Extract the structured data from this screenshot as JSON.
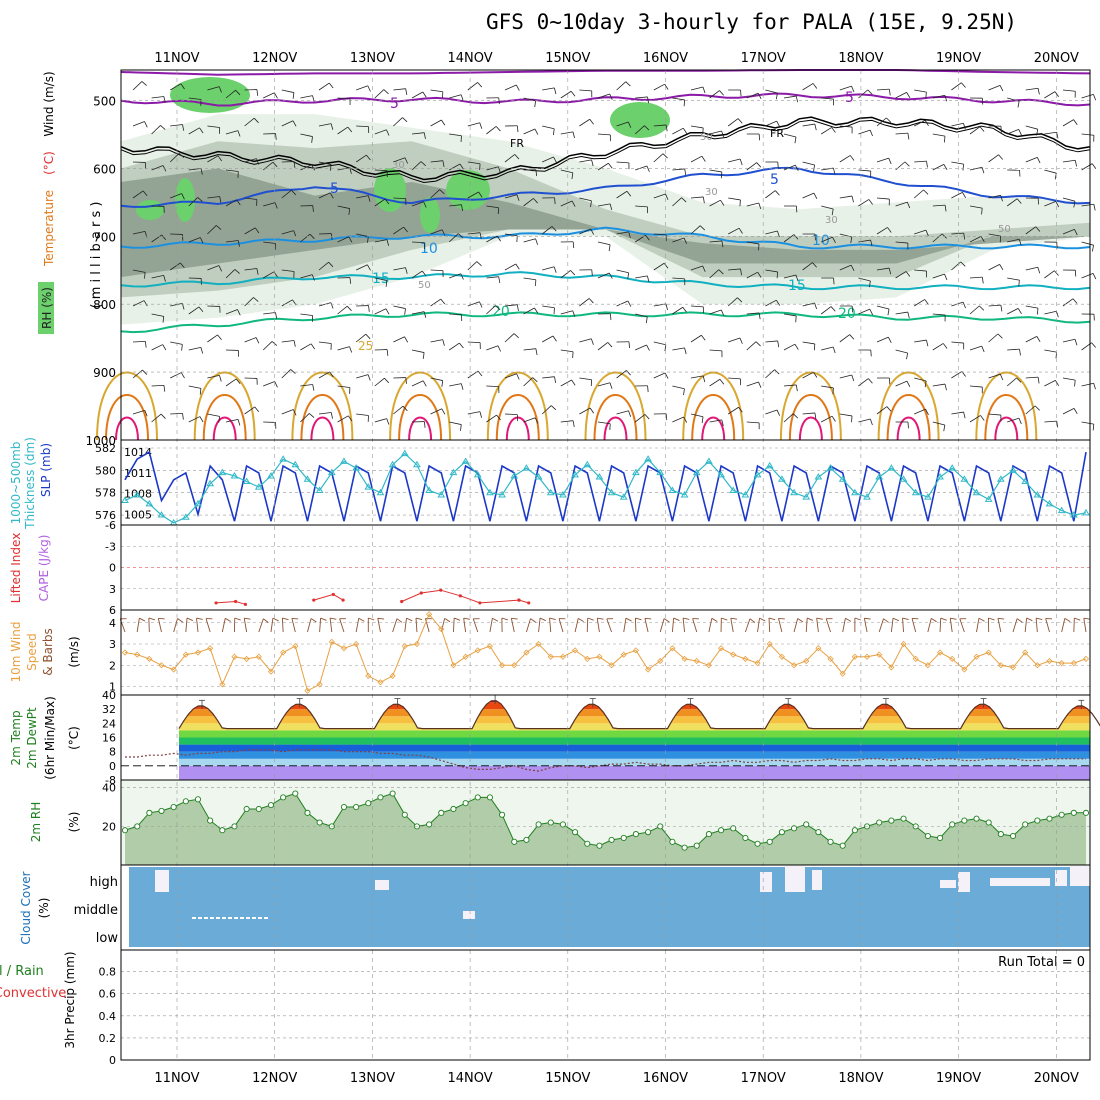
{
  "title": "GFS 0~10day 3-hourly for PALA (15E, 9.25N)",
  "colors": {
    "violet": "#8b1aa8",
    "freezing": "#000000",
    "t5": "#2050d0",
    "t10": "#1c90e0",
    "t15": "#10b0c0",
    "t20": "#10b880",
    "t25": "#d8a830",
    "t30": "#e07818",
    "t35": "#e01878",
    "rh_light": "#e4efe4",
    "rh_mid": "#b8c8b8",
    "rh_dark": "#8c9c8c",
    "rh_green": "#6cd06c",
    "slp": "#1c38c8",
    "thickness": "#30b8c8",
    "lifted": "#e03030",
    "wind10": "#e8a040",
    "barb10": "#8c5030",
    "rh2m": "#a8c8a0",
    "cloud": "#6aabd8",
    "cloud_clear": "#f4f2f8"
  },
  "chart_data": [
    {
      "type": "time-height",
      "xlabels": [
        "11NOV",
        "12NOV",
        "13NOV",
        "14NOV",
        "15NOV",
        "16NOV",
        "17NOV",
        "18NOV",
        "19NOV",
        "20NOV"
      ],
      "ylabel": "( m i l l i b a r s )",
      "ylabel_parts": [
        "RH (%)",
        "Temperature",
        "(°C)",
        "Wind (m/s)"
      ],
      "yticks": [
        500,
        600,
        700,
        800,
        900,
        1000
      ],
      "contour_labels": [
        "5",
        "5",
        "FR",
        "FR",
        "5",
        "5",
        "10",
        "10",
        "15",
        "15",
        "20",
        "20",
        "25",
        "30",
        "30",
        "30",
        "50",
        "50",
        "50"
      ],
      "isotherms": [
        {
          "name": "5 (upper)",
          "y": [
            500,
            505,
            500,
            498,
            502,
            498,
            494,
            492,
            495,
            500,
            505
          ]
        },
        {
          "name": "FR",
          "y": [
            568,
            580,
            590,
            612,
            605,
            575,
            550,
            530,
            530,
            540,
            570
          ]
        },
        {
          "name": "5",
          "y": [
            655,
            650,
            625,
            650,
            640,
            630,
            610,
            600,
            620,
            640,
            650
          ]
        },
        {
          "name": "10",
          "y": [
            715,
            710,
            705,
            700,
            700,
            690,
            700,
            715,
            715,
            715,
            715
          ]
        },
        {
          "name": "15",
          "y": [
            772,
            768,
            760,
            760,
            755,
            760,
            770,
            775,
            775,
            775,
            775
          ]
        },
        {
          "name": "20",
          "y": [
            840,
            830,
            820,
            815,
            815,
            815,
            815,
            815,
            820,
            820,
            825
          ]
        }
      ]
    },
    {
      "type": "line",
      "yticks_left": [
        582,
        580,
        578,
        576
      ],
      "yticks_right": [
        1014,
        1011,
        1008,
        1005
      ],
      "ylabel": [
        "1000~500mb",
        "Thickness (dm)",
        "SLP (mb)"
      ],
      "series": [
        {
          "name": "SLP",
          "values": [
            1010,
            1013,
            1014,
            1007,
            1010,
            1011,
            1005,
            1012,
            1010,
            1004,
            1012,
            1011,
            1004,
            1012,
            1011,
            1004,
            1012,
            1011,
            1004,
            1012,
            1011,
            1004,
            1012,
            1011,
            1004,
            1012,
            1011,
            1004,
            1012,
            1011,
            1004,
            1012,
            1011,
            1004,
            1012,
            1011,
            1004,
            1012,
            1011,
            1004,
            1012,
            1011,
            1004,
            1012,
            1011,
            1004,
            1012,
            1011,
            1004,
            1012,
            1011,
            1004,
            1012,
            1011,
            1004,
            1012,
            1011,
            1004,
            1012,
            1011,
            1004,
            1012,
            1011,
            1004,
            1012,
            1011,
            1004,
            1012,
            1011,
            1004,
            1012,
            1011,
            1004,
            1012,
            1011,
            1004,
            1012,
            1011,
            1004,
            1014
          ]
        },
        {
          "name": "Thickness",
          "values": [
            577.3,
            577.8,
            577.0,
            576.0,
            575.3,
            575.8,
            577.0,
            578.8,
            579.8,
            579.5,
            579.0,
            578.5,
            579.5,
            581.0,
            580.5,
            579.2,
            578.2,
            579.8,
            580.8,
            580.2,
            578.5,
            578.0,
            580.5,
            581.5,
            580.5,
            578.2,
            577.8,
            579.8,
            580.8,
            579.6,
            578.0,
            577.8,
            579.5,
            580.2,
            579.4,
            578.0,
            577.8,
            579.6,
            580.5,
            579.4,
            578.0,
            577.6,
            579.8,
            581.0,
            579.8,
            578.2,
            577.8,
            579.8,
            580.8,
            579.6,
            578.2,
            577.8,
            579.6,
            580.4,
            579.2,
            578.0,
            577.6,
            579.4,
            580.2,
            579.2,
            578.0,
            577.6,
            579.4,
            580.2,
            579.2,
            578.0,
            577.6,
            579.4,
            580.2,
            579.2,
            578.0,
            577.4,
            579.2,
            580.0,
            579.0,
            577.8,
            577.0,
            576.4,
            576.0,
            576.2
          ]
        }
      ]
    },
    {
      "type": "line",
      "ylabel": [
        "Lifted Index",
        "CAPE (J/kg)"
      ],
      "yticks": [
        "-6",
        "-3",
        "0",
        "3",
        "6"
      ],
      "series": [
        {
          "name": "Lifted Index",
          "points": [
            [
              1.4,
              5.0
            ],
            [
              1.6,
              4.8
            ],
            [
              1.7,
              5.2
            ],
            [
              2.4,
              4.6
            ],
            [
              2.6,
              3.8
            ],
            [
              2.7,
              4.6
            ],
            [
              3.3,
              4.8
            ],
            [
              3.5,
              3.6
            ],
            [
              3.7,
              3.2
            ],
            [
              3.9,
              4.0
            ],
            [
              4.1,
              5.0
            ],
            [
              4.5,
              4.6
            ],
            [
              4.6,
              5.0
            ]
          ]
        }
      ]
    },
    {
      "type": "line",
      "ylabel": [
        "10m Wind",
        "Speed",
        "& Barbs",
        "(m/s)"
      ],
      "yticks": [
        1,
        2,
        3,
        4
      ],
      "series": [
        {
          "name": "10m Wind Speed",
          "values": [
            2.6,
            2.5,
            2.3,
            2.0,
            1.8,
            2.5,
            2.6,
            2.8,
            1.1,
            2.4,
            2.3,
            2.4,
            1.7,
            2.6,
            2.9,
            0.8,
            1.1,
            3.1,
            2.8,
            3.0,
            1.5,
            1.2,
            1.5,
            2.9,
            3.0,
            4.4,
            3.7,
            2.0,
            2.4,
            2.7,
            2.9,
            2.0,
            2.0,
            2.6,
            3.0,
            2.4,
            2.4,
            2.7,
            2.3,
            2.4,
            2.0,
            2.5,
            2.7,
            1.8,
            2.2,
            2.8,
            2.3,
            2.2,
            2.0,
            2.8,
            2.5,
            2.3,
            2.1,
            3.0,
            2.4,
            2.0,
            2.2,
            2.8,
            2.3,
            1.6,
            2.4,
            2.4,
            2.5,
            1.9,
            3.0,
            2.3,
            2.0,
            2.6,
            2.3,
            1.8,
            2.4,
            2.6,
            2.0,
            1.9,
            2.6,
            2.0,
            2.2,
            2.1,
            2.1,
            2.3
          ]
        }
      ]
    },
    {
      "type": "line",
      "ylabel": [
        "2m Temp",
        "2m DewPt",
        "(6hr Min/Max)",
        "(°C)"
      ],
      "yticks": [
        40,
        32,
        24,
        16,
        8,
        0,
        -8
      ],
      "series": [
        {
          "name": "2m Temp",
          "daily_min": [
            21,
            21,
            21,
            21,
            21,
            21,
            21,
            21,
            21,
            21
          ],
          "daily_max": [
            34,
            35,
            35,
            37,
            35,
            35,
            35,
            35,
            35,
            34
          ]
        },
        {
          "name": "2m DewPt",
          "values": [
            5,
            5,
            6,
            6,
            7,
            6,
            7,
            7,
            8,
            8,
            9,
            9,
            9,
            8,
            9,
            9,
            9,
            9,
            8,
            8,
            8,
            7,
            7,
            6,
            6,
            5,
            3,
            1,
            -1,
            -2,
            -2,
            -1,
            0,
            -2,
            -3,
            -1,
            0,
            0,
            -1,
            0,
            1,
            1,
            2,
            1,
            1,
            0,
            0,
            1,
            2,
            2,
            3,
            2,
            2,
            3,
            3,
            2,
            3,
            3,
            4,
            3,
            3,
            4,
            4,
            3,
            4,
            4,
            3,
            4,
            4,
            3,
            3,
            4,
            4,
            4,
            3,
            3,
            4,
            4,
            4,
            4
          ]
        }
      ]
    },
    {
      "type": "area",
      "ylabel": [
        "2m RH",
        "(%)"
      ],
      "yticks": [
        40,
        20
      ],
      "series": [
        {
          "name": "2m RH",
          "values": [
            18,
            20,
            27,
            28,
            30,
            33,
            34,
            23,
            18,
            20,
            29,
            29,
            31,
            35,
            37,
            27,
            22,
            20,
            30,
            30,
            32,
            35,
            37,
            26,
            20,
            21,
            27,
            29,
            32,
            35,
            35,
            26,
            12,
            13,
            21,
            22,
            21,
            17,
            11,
            10,
            13,
            14,
            16,
            17,
            20,
            12,
            9,
            10,
            16,
            18,
            19,
            14,
            11,
            12,
            17,
            19,
            21,
            17,
            12,
            10,
            18,
            20,
            22,
            23,
            24,
            20,
            15,
            14,
            21,
            23,
            24,
            22,
            16,
            15,
            21,
            23,
            24,
            26,
            27,
            27
          ]
        }
      ]
    },
    {
      "type": "bar",
      "ylabel": [
        "Cloud Cover",
        "(%)"
      ],
      "ytick_labels": [
        "high",
        "middle",
        "low"
      ]
    },
    {
      "type": "bar",
      "ylabel": [
        "3hr Precip (mm)"
      ],
      "ylabel_side": [
        "Total / Rain",
        "Convective"
      ],
      "yticks": [
        "0.8",
        "0.6",
        "0.4",
        "0.2",
        "0"
      ],
      "annotation": "Run Total = 0",
      "values": []
    }
  ]
}
